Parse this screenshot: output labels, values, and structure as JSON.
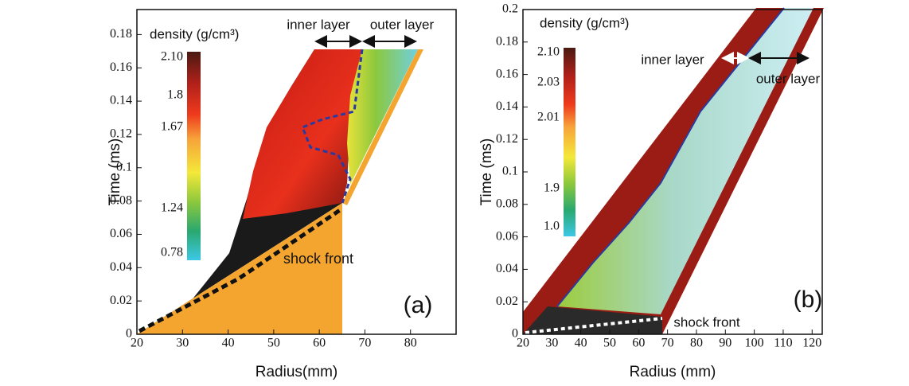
{
  "chart_data": [
    {
      "type": "contour",
      "xlabel": "Radius(mm)",
      "ylabel": "Time (ms)",
      "xlim": [
        20,
        90
      ],
      "xticks": [
        20,
        30,
        40,
        50,
        60,
        70,
        80
      ],
      "ylim": [
        0,
        0.195
      ],
      "yticks": [
        0,
        0.02,
        0.04,
        0.06,
        0.08,
        0.1,
        0.12,
        0.14,
        0.16,
        0.18
      ],
      "grid": false,
      "colorbar_label": "density (g/cm³)",
      "colorbar_ticks": [
        {
          "value": 2.1,
          "label": "2.10"
        },
        1.8,
        1.67,
        1.24,
        0.78
      ],
      "annotations": [
        "inner layer",
        "outer layer",
        "shock front",
        "(a)"
      ]
    },
    {
      "type": "contour",
      "xlabel": "Radius (mm)",
      "ylabel": "Time (ms)",
      "xlim": [
        20,
        123.5
      ],
      "xticks": [
        20,
        30,
        40,
        50,
        60,
        70,
        80,
        90,
        100,
        110,
        120
      ],
      "ylim": [
        0,
        0.2
      ],
      "yticks": [
        0,
        0.02,
        0.04,
        0.06,
        0.08,
        0.1,
        0.12,
        0.14,
        0.16,
        0.18,
        0.2
      ],
      "grid": false,
      "colorbar_label": "density (g/cm³)",
      "colorbar_ticks": [
        {
          "value": 2.1,
          "label": "2.10"
        },
        2.03,
        2.01,
        1.9,
        {
          "value": 1,
          "label": "1.0"
        }
      ],
      "annotations": [
        "inner layer",
        "outer layer",
        "shock front",
        "(b)"
      ]
    }
  ]
}
